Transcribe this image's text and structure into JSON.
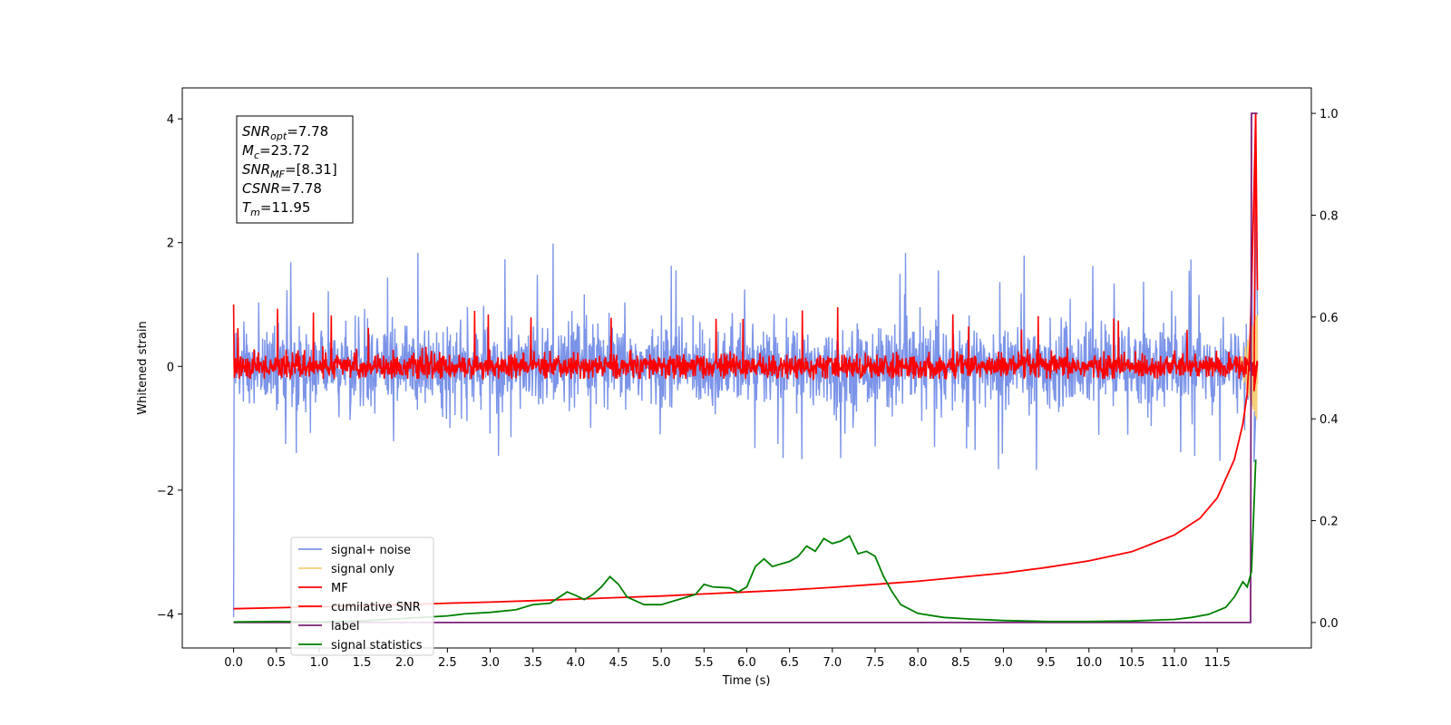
{
  "chart_data": {
    "type": "line",
    "title": "",
    "xlabel": "Time (s)",
    "ylabel": "Whitened strain",
    "y2label": "",
    "xlim": [
      -0.6,
      12.6
    ],
    "ylim": [
      -4.55,
      4.5
    ],
    "y2lim": [
      -0.05,
      1.05
    ],
    "x_ticks": [
      "0.0",
      "0.5",
      "1.0",
      "1.5",
      "2.0",
      "2.5",
      "3.0",
      "3.5",
      "4.0",
      "4.5",
      "5.0",
      "5.5",
      "6.0",
      "6.5",
      "7.0",
      "7.5",
      "8.0",
      "8.5",
      "9.0",
      "9.5",
      "10.0",
      "10.5",
      "11.0",
      "11.5"
    ],
    "y_ticks": [
      "4",
      "2",
      "0",
      "−2",
      "−4"
    ],
    "y2_ticks": [
      "1.0",
      "0.8",
      "0.6",
      "0.4",
      "0.2",
      "0.0"
    ],
    "grid": false,
    "legend_position": "lower-left",
    "annotation": {
      "lines": [
        {
          "name": "SNR",
          "sub": "opt",
          "value": "=7.78"
        },
        {
          "name": "M",
          "sub": "c",
          "value": "=23.72"
        },
        {
          "name": "SNR",
          "sub": "MF",
          "value": "=[8.31]"
        },
        {
          "name": "CSNR",
          "sub": "",
          "value": "=7.78"
        },
        {
          "name": "T",
          "sub": "m",
          "value": "=11.95"
        }
      ]
    },
    "series": [
      {
        "name": "signal+ noise",
        "color": "#7b94e8",
        "axis": "left",
        "kind": "noise",
        "x_range": [
          0.0,
          11.97
        ],
        "amplitude": 0.6,
        "peak_range": [
          -1.7,
          2.1
        ],
        "end_spike": [
          -1.55,
          2.7
        ]
      },
      {
        "name": "signal only",
        "color": "#f5cf77",
        "axis": "left",
        "kind": "chirp",
        "x_range": [
          11.75,
          11.97
        ],
        "y_range": [
          -0.9,
          0.9
        ]
      },
      {
        "name": "MF",
        "color": "#ff0000",
        "axis": "left",
        "kind": "noise",
        "x_range": [
          0.0,
          11.97
        ],
        "amplitude": 0.18,
        "peak_range": [
          -0.2,
          1.0
        ],
        "end_spike": [
          -0.4,
          4.1
        ]
      },
      {
        "name": "cumilative SNR",
        "color": "#ff0000",
        "axis": "right",
        "x": [
          0.0,
          0.5,
          1.0,
          1.5,
          2.0,
          2.5,
          3.0,
          3.5,
          4.0,
          4.5,
          5.0,
          5.5,
          6.0,
          6.5,
          7.0,
          7.5,
          8.0,
          8.5,
          9.0,
          9.5,
          10.0,
          10.5,
          11.0,
          11.3,
          11.5,
          11.7,
          11.8,
          11.85,
          11.88,
          11.9,
          11.93,
          11.95
        ],
        "y": [
          0.027,
          0.029,
          0.031,
          0.033,
          0.035,
          0.038,
          0.04,
          0.043,
          0.046,
          0.049,
          0.052,
          0.056,
          0.06,
          0.064,
          0.069,
          0.075,
          0.081,
          0.089,
          0.097,
          0.108,
          0.121,
          0.139,
          0.172,
          0.205,
          0.245,
          0.32,
          0.39,
          0.45,
          0.54,
          0.65,
          0.85,
          1.0
        ]
      },
      {
        "name": "label",
        "color": "#7b1f7a",
        "axis": "right",
        "x": [
          0.0,
          11.89,
          11.9,
          11.97
        ],
        "y": [
          0.0,
          0.0,
          1.0,
          1.0
        ]
      },
      {
        "name": "signal statistics",
        "color": "#008000",
        "axis": "right",
        "x": [
          0.0,
          0.5,
          1.0,
          1.5,
          2.0,
          2.5,
          2.7,
          3.0,
          3.3,
          3.5,
          3.7,
          3.9,
          4.0,
          4.1,
          4.2,
          4.3,
          4.4,
          4.5,
          4.6,
          4.8,
          5.0,
          5.2,
          5.4,
          5.5,
          5.6,
          5.8,
          5.9,
          6.0,
          6.1,
          6.2,
          6.3,
          6.4,
          6.5,
          6.6,
          6.7,
          6.8,
          6.9,
          7.0,
          7.1,
          7.2,
          7.3,
          7.4,
          7.5,
          7.6,
          7.7,
          7.8,
          8.0,
          8.3,
          8.6,
          9.0,
          9.5,
          10.0,
          10.5,
          11.0,
          11.2,
          11.4,
          11.6,
          11.7,
          11.8,
          11.85,
          11.9,
          11.95
        ],
        "y": [
          0.001,
          0.002,
          0.001,
          0.003,
          0.008,
          0.013,
          0.017,
          0.02,
          0.025,
          0.035,
          0.038,
          0.06,
          0.053,
          0.045,
          0.055,
          0.07,
          0.09,
          0.075,
          0.05,
          0.035,
          0.035,
          0.045,
          0.055,
          0.075,
          0.07,
          0.068,
          0.06,
          0.07,
          0.11,
          0.125,
          0.11,
          0.115,
          0.12,
          0.13,
          0.15,
          0.14,
          0.165,
          0.155,
          0.16,
          0.17,
          0.135,
          0.14,
          0.13,
          0.09,
          0.06,
          0.035,
          0.018,
          0.01,
          0.007,
          0.004,
          0.002,
          0.002,
          0.003,
          0.006,
          0.01,
          0.016,
          0.03,
          0.05,
          0.08,
          0.07,
          0.1,
          0.32
        ]
      }
    ]
  }
}
